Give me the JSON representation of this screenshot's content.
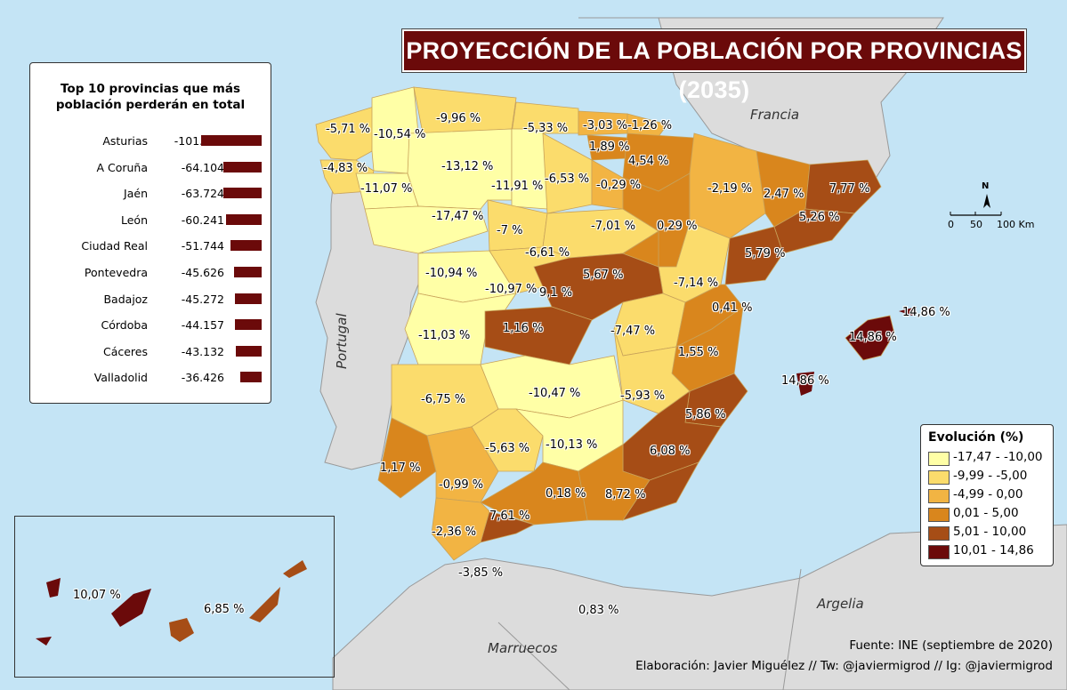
{
  "title": "PROYECCIÓN DE LA POBLACIÓN POR PROVINCIAS (2035)",
  "top10": {
    "title": "Top 10 provincias que más\npoblación perderán en total",
    "rows": [
      {
        "name": "Asturias",
        "value": "-101.436",
        "amount": 101436
      },
      {
        "name": "A Coruña",
        "value": "-64.104",
        "amount": 64104
      },
      {
        "name": "Jaén",
        "value": "-63.724",
        "amount": 63724
      },
      {
        "name": "León",
        "value": "-60.241",
        "amount": 60241
      },
      {
        "name": "Ciudad Real",
        "value": "-51.744",
        "amount": 51744
      },
      {
        "name": "Pontevedra",
        "value": "-45.626",
        "amount": 45626
      },
      {
        "name": "Badajoz",
        "value": "-45.272",
        "amount": 45272
      },
      {
        "name": "Córdoba",
        "value": "-44.157",
        "amount": 44157
      },
      {
        "name": "Cáceres",
        "value": "-43.132",
        "amount": 43132
      },
      {
        "name": "Valladolid",
        "value": "-36.426",
        "amount": 36426
      }
    ]
  },
  "legend": {
    "title": "Evolución (%)",
    "items": [
      {
        "label": "-17,47 - -10,00",
        "color": "#ffffa6"
      },
      {
        "label": "-9,99 - -5,00",
        "color": "#fbdc6c"
      },
      {
        "label": "-4,99 - 0,00",
        "color": "#f2b443"
      },
      {
        "label": "0,01 - 5,00",
        "color": "#d9861d"
      },
      {
        "label": "5,01 - 10,00",
        "color": "#a64d16"
      },
      {
        "label": "10,01 - 14,86",
        "color": "#6b0a0a"
      }
    ]
  },
  "countries": {
    "francia": "Francia",
    "portugal": "Portugal",
    "argelia": "Argelia",
    "marruecos": "Marruecos"
  },
  "scale": {
    "north": "N",
    "t0": "0",
    "t1": "50",
    "t2": "100 Km"
  },
  "credits": {
    "source": "Fuente: INE (septiembre de 2020)",
    "author": "Elaboración: Javier Miguélez // Tw: @javiermigrod // Ig: @javiermigrod"
  },
  "province_labels": [
    "-5,71 %",
    "-10,54 %",
    "-9,96 %",
    "-5,33 %",
    "-3,03 %",
    "-1,26 %",
    "1,89 %",
    "4,54 %",
    "-4,83 %",
    "-13,12 %",
    "-6,53 %",
    "-0,29 %",
    "-11,07 %",
    "-11,91 %",
    "-2,19 %",
    "2,47 %",
    "7,77 %",
    "-17,47 %",
    "-7,01 %",
    "5,26 %",
    "-7 %",
    "0,29 %",
    "-6,61 %",
    "5,79 %",
    "5,67 %",
    "-10,94 %",
    "-10,97 %",
    "9,1 %",
    "-7,14 %",
    "0,41 %",
    "14,86 %",
    "1,16 %",
    "-7,47 %",
    "-11,03 %",
    "14,86 %",
    "1,55 %",
    "14,86 %",
    "-10,47 %",
    "-6,75 %",
    "-5,93 %",
    "5,86 %",
    "1,17 %",
    "-5,63 %",
    "-10,13 %",
    "6,08 %",
    "-0,99 %",
    "0,18 %",
    "8,72 %",
    "7,61 %",
    "-2,36 %",
    "-3,85 %",
    "0,83 %",
    "10,07 %",
    "6,85 %"
  ]
}
